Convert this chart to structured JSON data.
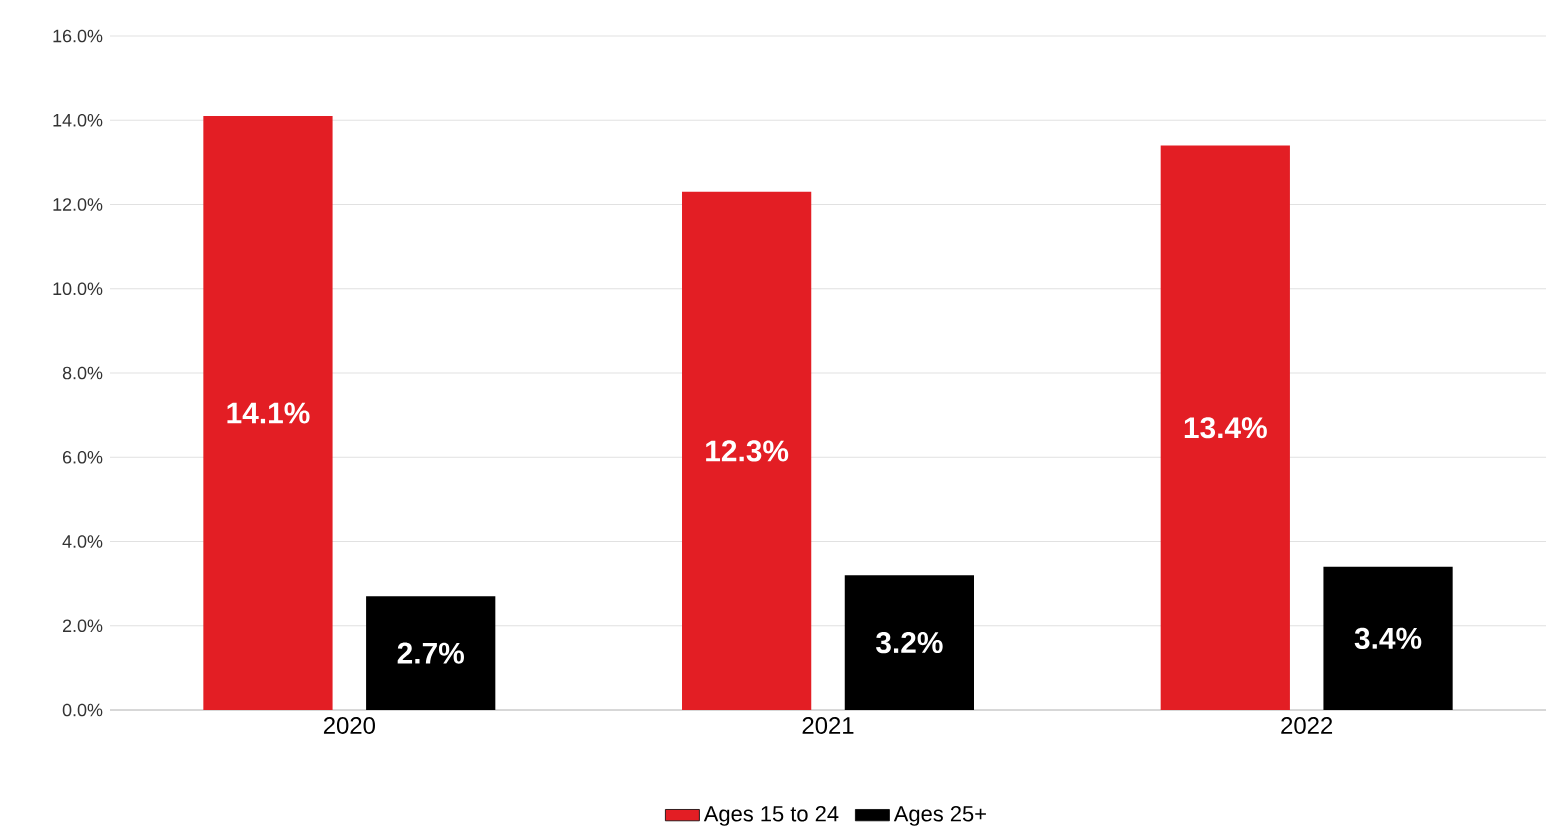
{
  "chart_data": {
    "type": "bar",
    "categories": [
      "2020",
      "2021",
      "2022"
    ],
    "series": [
      {
        "name": "Ages 15 to 24",
        "color": "#e31e24",
        "values": [
          14.1,
          12.3,
          13.4
        ],
        "value_labels": [
          "14.1%",
          "12.3%",
          "13.4%"
        ]
      },
      {
        "name": "Ages 25+",
        "color": "#000000",
        "values": [
          2.7,
          3.2,
          3.4
        ],
        "value_labels": [
          "2.7%",
          "3.2%",
          "3.4%"
        ]
      }
    ],
    "ylim": [
      0,
      16
    ],
    "yticks": [
      {
        "value": 0,
        "label": "0.0%"
      },
      {
        "value": 2,
        "label": "2.0%"
      },
      {
        "value": 4,
        "label": "4.0%"
      },
      {
        "value": 6,
        "label": "6.0%"
      },
      {
        "value": 8,
        "label": "8.0%"
      },
      {
        "value": 10,
        "label": "10.0%"
      },
      {
        "value": 12,
        "label": "12.0%"
      },
      {
        "value": 14,
        "label": "14.0%"
      },
      {
        "value": 16,
        "label": "16.0%"
      }
    ],
    "grid": "y",
    "legend": "bottom"
  }
}
